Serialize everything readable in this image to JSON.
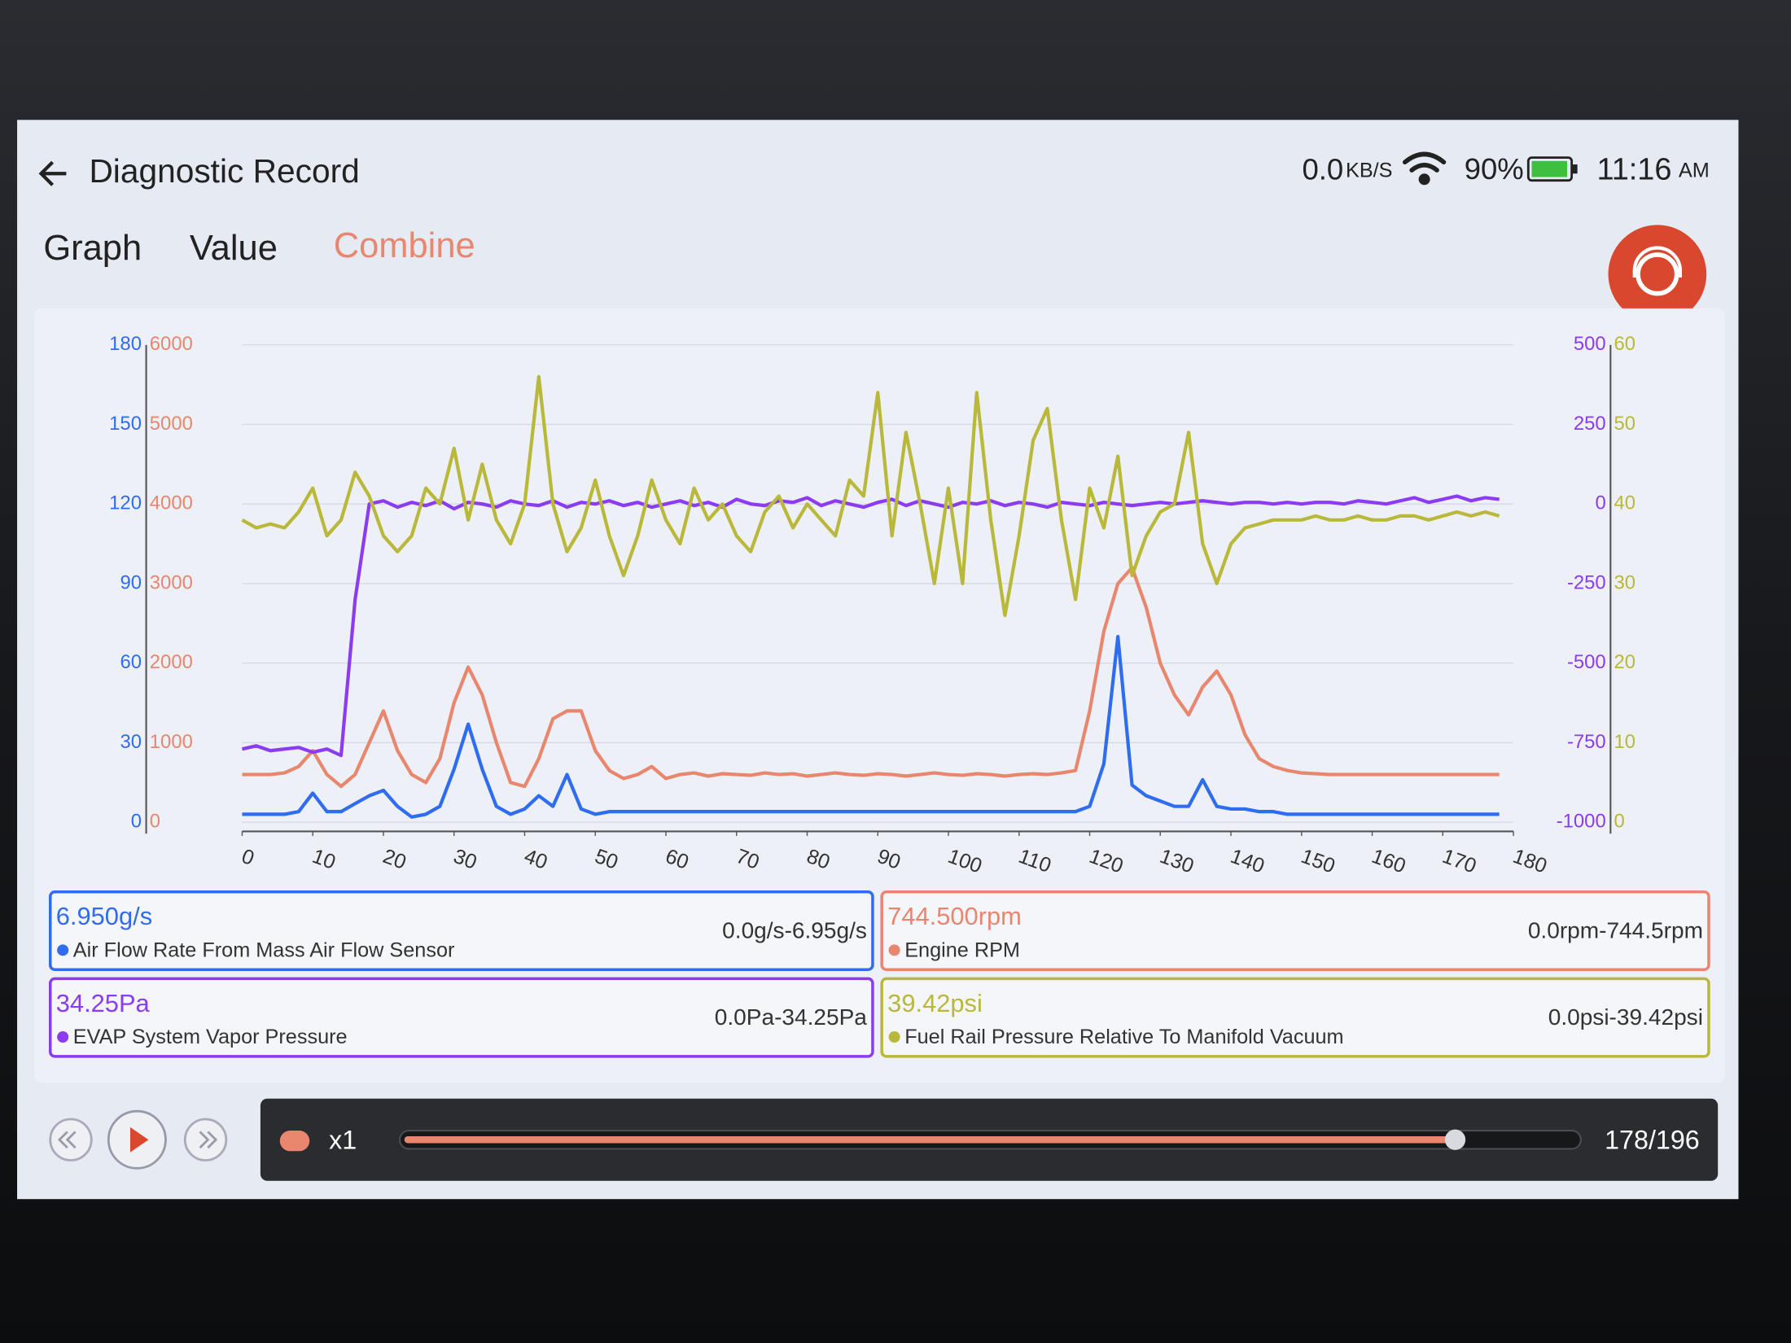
{
  "header": {
    "title": "Diagnostic Record",
    "speed": "0.0",
    "speed_unit": "KB/S",
    "battery": "90%",
    "time": "11:16",
    "ampm": "AM"
  },
  "tabs": [
    "Graph",
    "Value",
    "Combine"
  ],
  "chart_data": {
    "type": "line",
    "x": [
      0,
      2,
      4,
      6,
      8,
      10,
      12,
      14,
      16,
      18,
      20,
      22,
      24,
      26,
      28,
      30,
      32,
      34,
      36,
      38,
      40,
      42,
      44,
      46,
      48,
      50,
      52,
      54,
      56,
      58,
      60,
      62,
      64,
      66,
      68,
      70,
      72,
      74,
      76,
      78,
      80,
      82,
      84,
      86,
      88,
      90,
      92,
      94,
      96,
      98,
      100,
      102,
      104,
      106,
      108,
      110,
      112,
      114,
      116,
      118,
      120,
      122,
      124,
      126,
      128,
      130,
      132,
      134,
      136,
      138,
      140,
      142,
      144,
      146,
      148,
      150,
      152,
      154,
      156,
      158,
      160,
      162,
      164,
      166,
      168,
      170,
      172,
      174,
      176,
      178
    ],
    "xlim": [
      0,
      180
    ],
    "xticks": [
      0,
      10,
      20,
      30,
      40,
      50,
      60,
      70,
      80,
      90,
      100,
      110,
      120,
      130,
      140,
      150,
      160,
      170,
      180
    ],
    "ylim": [
      0,
      180
    ],
    "yticks": [
      0,
      30,
      60,
      90,
      120,
      150,
      180
    ],
    "y2lim": [
      0,
      6000
    ],
    "y2ticks": [
      0,
      1000,
      2000,
      3000,
      4000,
      5000,
      6000
    ],
    "y3lim": [
      -1000,
      500
    ],
    "y3ticks": [
      -1000,
      -750,
      -500,
      -250,
      0,
      250,
      500
    ],
    "y4lim": [
      0,
      60
    ],
    "y4ticks": [
      0,
      10,
      20,
      30,
      40,
      50,
      60
    ],
    "grid": true,
    "series": [
      {
        "name": "Air Flow Rate From Mass Air Flow Sensor",
        "color": "#2f6df0",
        "axis": "y",
        "reading": "6.950g/s",
        "range": "0.0g/s-6.95g/s",
        "values": [
          3,
          3,
          3,
          3,
          4,
          11,
          4,
          4,
          7,
          10,
          12,
          6,
          2,
          3,
          6,
          20,
          37,
          20,
          6,
          3,
          5,
          10,
          6,
          18,
          5,
          3,
          4,
          4,
          4,
          4,
          4,
          4,
          4,
          4,
          4,
          4,
          4,
          4,
          4,
          4,
          4,
          4,
          4,
          4,
          4,
          4,
          4,
          4,
          4,
          4,
          4,
          4,
          4,
          4,
          4,
          4,
          4,
          4,
          4,
          4,
          6,
          22,
          70,
          14,
          10,
          8,
          6,
          6,
          16,
          6,
          5,
          5,
          4,
          4,
          3,
          3,
          3,
          3,
          3,
          3,
          3,
          3,
          3,
          3,
          3,
          3,
          3,
          3,
          3,
          3
        ]
      },
      {
        "name": "Engine RPM",
        "color": "#e8866e",
        "axis": "y2",
        "reading": "744.500rpm",
        "range": "0.0rpm-744.5rpm",
        "values": [
          600,
          600,
          600,
          620,
          700,
          900,
          600,
          450,
          600,
          1000,
          1400,
          900,
          600,
          500,
          800,
          1500,
          1950,
          1600,
          1000,
          500,
          450,
          800,
          1300,
          1400,
          1400,
          900,
          650,
          550,
          600,
          700,
          550,
          600,
          620,
          580,
          610,
          600,
          590,
          620,
          600,
          610,
          580,
          600,
          620,
          600,
          590,
          610,
          600,
          580,
          600,
          620,
          600,
          590,
          610,
          600,
          580,
          600,
          610,
          600,
          620,
          650,
          1400,
          2400,
          3000,
          3200,
          2700,
          2000,
          1600,
          1350,
          1700,
          1900,
          1600,
          1100,
          800,
          700,
          650,
          620,
          610,
          600,
          600,
          600,
          600,
          600,
          600,
          600,
          600,
          600,
          600,
          600,
          600,
          600
        ]
      },
      {
        "name": "EVAP System Vapor Pressure",
        "color": "#8b3bf2",
        "axis": "y3",
        "reading": "34.25Pa",
        "range": "0.0Pa-34.25Pa",
        "values": [
          -770,
          -760,
          -775,
          -770,
          -765,
          -780,
          -770,
          -790,
          -300,
          0,
          10,
          -10,
          5,
          -5,
          10,
          -15,
          5,
          0,
          -10,
          10,
          0,
          -5,
          10,
          -10,
          5,
          0,
          10,
          -5,
          5,
          -10,
          0,
          10,
          -5,
          5,
          -10,
          15,
          0,
          -5,
          10,
          5,
          20,
          -5,
          10,
          0,
          -10,
          5,
          15,
          -5,
          10,
          0,
          -10,
          5,
          0,
          10,
          -5,
          5,
          0,
          -10,
          5,
          0,
          -5,
          5,
          0,
          -5,
          0,
          5,
          0,
          5,
          10,
          5,
          0,
          5,
          5,
          0,
          5,
          0,
          5,
          5,
          0,
          10,
          5,
          0,
          10,
          20,
          5,
          15,
          25,
          10,
          20,
          15
        ]
      },
      {
        "name": "Fuel Rail Pressure Relative To Manifold Vacuum",
        "color": "#b9b83a",
        "axis": "y4",
        "reading": "39.42psi",
        "range": "0.0psi-39.42psi",
        "values": [
          38,
          37,
          37.5,
          37,
          39,
          42,
          36,
          38,
          44,
          41,
          36,
          34,
          36,
          42,
          40,
          47,
          38,
          45,
          38,
          35,
          40,
          56,
          40,
          34,
          37,
          43,
          36,
          31,
          36,
          43,
          38,
          35,
          42,
          38,
          40,
          36,
          34,
          39,
          41,
          37,
          40,
          38,
          36,
          43,
          41,
          54,
          36,
          49,
          40,
          30,
          42,
          30,
          54,
          38,
          26,
          36,
          48,
          52,
          38,
          28,
          42,
          37,
          46,
          31,
          36,
          39,
          40,
          49,
          35,
          30,
          35,
          37,
          37.5,
          38,
          38,
          38,
          38.5,
          38,
          38,
          38.5,
          38,
          38,
          38.5,
          38.5,
          38,
          38.5,
          39,
          38.5,
          39,
          38.5
        ]
      }
    ]
  },
  "player": {
    "speed": "x1",
    "position": "178/196"
  }
}
